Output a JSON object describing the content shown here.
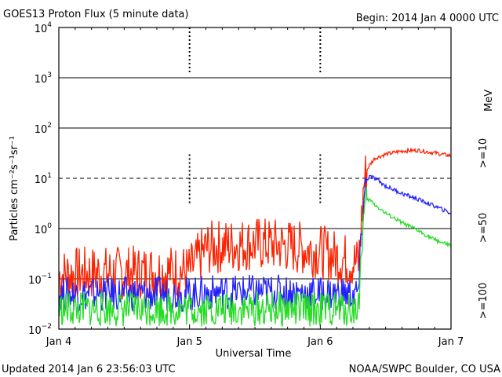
{
  "header": {
    "title": "GOES13 Proton Flux (5 minute data)",
    "begin": "Begin: 2014 Jan 4 0000 UTC"
  },
  "footer": {
    "updated": "Updated 2014 Jan  6 23:56:03 UTC",
    "credit": "NOAA/SWPC Boulder, CO USA"
  },
  "axes": {
    "ylabel": "Particles cm⁻²s⁻¹sr⁻¹",
    "xlabel": "Universal Time",
    "ytick_labels": [
      {
        "base": "10",
        "exp": "-2"
      },
      {
        "base": "10",
        "exp": "-1"
      },
      {
        "base": "10",
        "exp": "0"
      },
      {
        "base": "10",
        "exp": "1"
      },
      {
        "base": "10",
        "exp": "2"
      },
      {
        "base": "10",
        "exp": "3"
      },
      {
        "base": "10",
        "exp": "4"
      }
    ],
    "xtick_labels": [
      "Jan 4",
      "Jan 5",
      "Jan 6",
      "Jan 7"
    ]
  },
  "legend": {
    "unit": "MeV",
    "entries": [
      {
        "label": ">=10",
        "color": "#ff2200"
      },
      {
        "label": ">=50",
        "color": "#2222ff"
      },
      {
        "label": ">=100",
        "color": "#22dd22"
      }
    ]
  },
  "chart_data": {
    "type": "line",
    "title": "GOES13 Proton Flux (5 minute data)",
    "xlabel": "Universal Time",
    "ylabel": "Particles cm⁻²s⁻¹sr⁻¹",
    "y_scale": "log",
    "ylim": [
      0.01,
      10000
    ],
    "xlim": [
      "2014-01-04 00:00",
      "2014-01-07 00:00"
    ],
    "grid": "horizontal at decades, dashed at 10",
    "series": [
      {
        "name": ">=10",
        "color": "#ff2200",
        "x": [
          "2014-01-04 00:00",
          "2014-01-04 06:00",
          "2014-01-04 12:00",
          "2014-01-04 18:00",
          "2014-01-05 00:00",
          "2014-01-05 03:00",
          "2014-01-05 06:00",
          "2014-01-05 12:00",
          "2014-01-05 18:00",
          "2014-01-06 00:00",
          "2014-01-06 04:00",
          "2014-01-06 07:00",
          "2014-01-06 07:30",
          "2014-01-06 08:00",
          "2014-01-06 08:30",
          "2014-01-06 09:00",
          "2014-01-06 10:00",
          "2014-01-06 12:00",
          "2014-01-06 15:00",
          "2014-01-06 18:00",
          "2014-01-06 21:00",
          "2014-01-07 00:00"
        ],
        "values": [
          0.12,
          0.13,
          0.13,
          0.14,
          0.14,
          0.4,
          0.45,
          0.5,
          0.45,
          0.35,
          0.25,
          0.2,
          1.0,
          8.0,
          14,
          18,
          25,
          30,
          35,
          36,
          32,
          28
        ]
      },
      {
        "name": ">=50",
        "color": "#2222ff",
        "x": [
          "2014-01-04 00:00",
          "2014-01-04 06:00",
          "2014-01-04 12:00",
          "2014-01-04 18:00",
          "2014-01-05 00:00",
          "2014-01-05 06:00",
          "2014-01-05 12:00",
          "2014-01-05 18:00",
          "2014-01-06 00:00",
          "2014-01-06 04:00",
          "2014-01-06 07:00",
          "2014-01-06 07:30",
          "2014-01-06 08:00",
          "2014-01-06 08:30",
          "2014-01-06 09:00",
          "2014-01-06 10:00",
          "2014-01-06 12:00",
          "2014-01-06 15:00",
          "2014-01-06 18:00",
          "2014-01-06 21:00",
          "2014-01-07 00:00"
        ],
        "values": [
          0.05,
          0.05,
          0.05,
          0.05,
          0.05,
          0.055,
          0.055,
          0.055,
          0.05,
          0.05,
          0.05,
          0.5,
          4.0,
          9.0,
          11,
          10,
          7,
          5,
          3.8,
          2.8,
          2.0
        ]
      },
      {
        "name": ">=100",
        "color": "#22dd22",
        "x": [
          "2014-01-04 00:00",
          "2014-01-04 06:00",
          "2014-01-04 12:00",
          "2014-01-04 18:00",
          "2014-01-05 00:00",
          "2014-01-05 06:00",
          "2014-01-05 12:00",
          "2014-01-05 18:00",
          "2014-01-06 00:00",
          "2014-01-06 04:00",
          "2014-01-06 07:00",
          "2014-01-06 07:30",
          "2014-01-06 08:00",
          "2014-01-06 08:30",
          "2014-01-06 09:00",
          "2014-01-06 10:00",
          "2014-01-06 12:00",
          "2014-01-06 15:00",
          "2014-01-06 18:00",
          "2014-01-06 21:00",
          "2014-01-07 00:00"
        ],
        "values": [
          0.025,
          0.025,
          0.025,
          0.025,
          0.025,
          0.025,
          0.025,
          0.025,
          0.025,
          0.025,
          0.025,
          0.3,
          2.0,
          3.5,
          3.8,
          3.0,
          2.0,
          1.3,
          0.9,
          0.6,
          0.45
        ]
      }
    ]
  }
}
